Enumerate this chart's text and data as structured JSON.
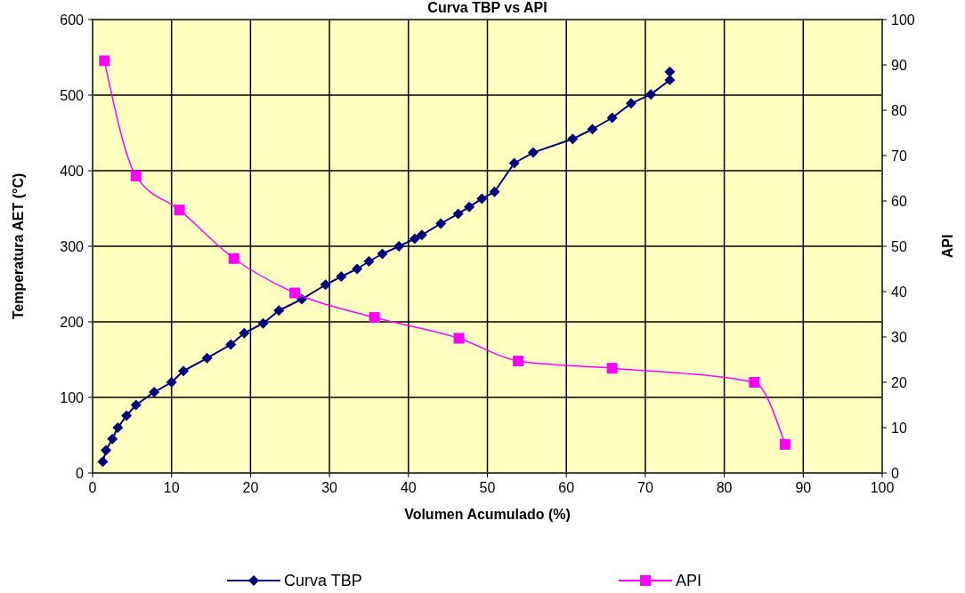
{
  "chart_data": {
    "type": "line",
    "title": "Curva TBP vs API",
    "xlabel": "Volumen Acumulado (%)",
    "ylabel": "Temperatura AET (°C)",
    "y2label": "API",
    "xlim": [
      0,
      100
    ],
    "xticks": [
      0,
      10,
      20,
      30,
      40,
      50,
      60,
      70,
      80,
      90,
      100
    ],
    "ylim": [
      0,
      600
    ],
    "yticks": [
      0,
      100,
      200,
      300,
      400,
      500,
      600
    ],
    "y2lim": [
      0,
      100
    ],
    "y2ticks": [
      0,
      10,
      20,
      30,
      40,
      50,
      60,
      70,
      80,
      90,
      100
    ],
    "grid": true,
    "legend": "bottom",
    "series": [
      {
        "name": "Curva TBP",
        "color": "#000080",
        "marker": "diamond",
        "x": [
          1.3,
          1.7,
          2.5,
          3.2,
          4.3,
          5.5,
          7.8,
          10,
          11.5,
          14.5,
          17.5,
          19.2,
          21.6,
          23.6,
          26.5,
          29.5,
          31.5,
          33.5,
          35,
          36.7,
          38.8,
          40.8,
          41.7,
          44.1,
          46.3,
          47.7,
          49.3,
          50.9,
          53.4,
          55.8,
          60.8,
          63.3,
          65.8,
          68.2,
          70.7,
          73.1,
          73.1
        ],
        "values": [
          15,
          30,
          45,
          60,
          76,
          90,
          107,
          120,
          135,
          152,
          170,
          185,
          198,
          215,
          230,
          249,
          260,
          270,
          280,
          290,
          300,
          310,
          315,
          330,
          343,
          352,
          363,
          372,
          410,
          424,
          442,
          455,
          470,
          489,
          501,
          520,
          531
        ]
      },
      {
        "name": "API",
        "color": "#ff00ff",
        "marker": "square",
        "axis": "y2",
        "x": [
          1.5,
          5.5,
          11,
          17.9,
          25.6,
          35.7,
          46.4,
          53.9,
          65.8,
          83.8,
          87.7
        ],
        "values": [
          90.9,
          65.5,
          58,
          47.3,
          39.7,
          34.3,
          29.7,
          24.7,
          23.1,
          20,
          6.3
        ]
      }
    ]
  }
}
